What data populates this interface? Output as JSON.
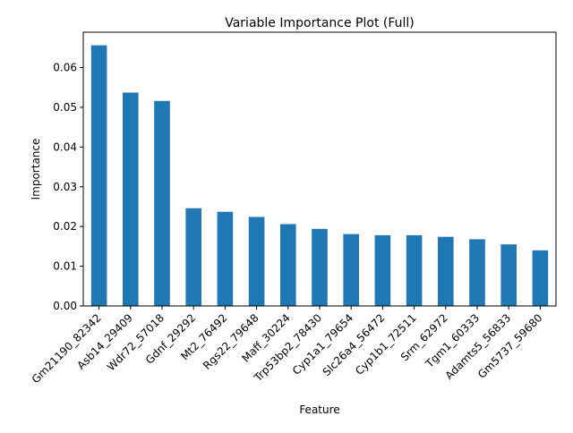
{
  "chart_data": {
    "type": "bar",
    "title": "Variable Importance Plot (Full)",
    "xlabel": "Feature",
    "ylabel": "Importance",
    "ylim": [
      0,
      0.0689
    ],
    "yticks": [
      "0.00",
      "0.01",
      "0.02",
      "0.03",
      "0.04",
      "0.05",
      "0.06"
    ],
    "grid": false,
    "legend": "none",
    "bar_color": "#1f77b4",
    "categories": [
      "Gm21190_82342",
      "Asb14_29409",
      "Wdr72_57018",
      "Gdnf_29292",
      "Mt2_76492",
      "Rgs22_79648",
      "Maff_30224",
      "Trp53bp2_78430",
      "Cyp1a1_79654",
      "Slc26a4_56472",
      "Cyp1b1_72511",
      "Srm_62972",
      "Tgm1_60333",
      "Adamts5_56833",
      "Gm5737_59680"
    ],
    "values": [
      0.0656,
      0.0537,
      0.0516,
      0.0246,
      0.0237,
      0.0224,
      0.0206,
      0.0194,
      0.0181,
      0.0178,
      0.0178,
      0.0174,
      0.0168,
      0.0155,
      0.014
    ]
  }
}
